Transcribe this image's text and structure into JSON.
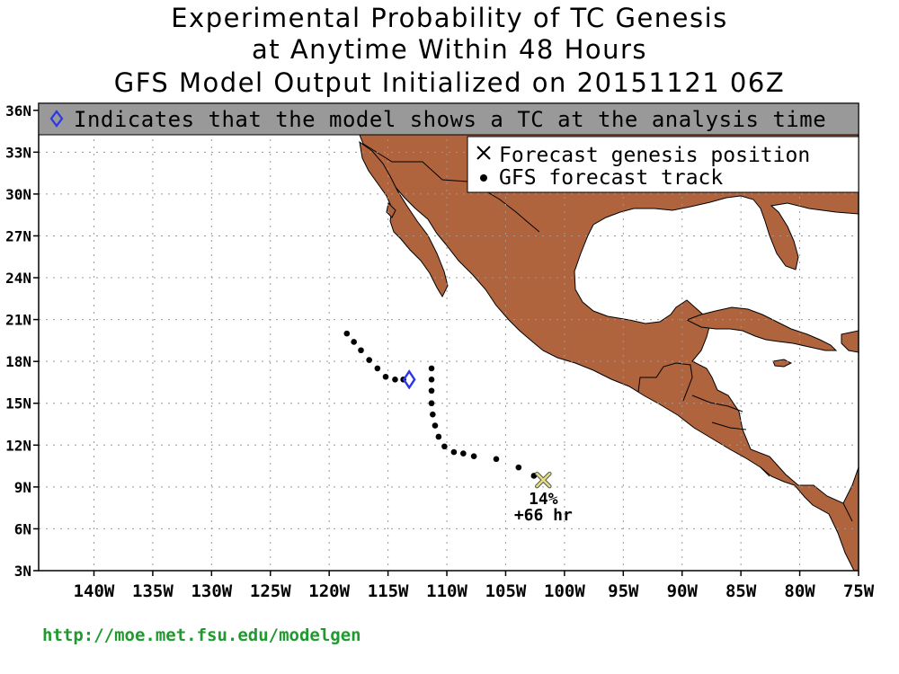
{
  "title": {
    "line1": "Experimental Probability of TC Genesis",
    "line2": "at Anytime Within 48 Hours",
    "line3": "GFS Model Output Initialized on 20151121 06Z"
  },
  "banner": {
    "text": "Indicates that the model shows a TC at the analysis time",
    "icon": "diamond-icon"
  },
  "legend": {
    "genesis_label": "Forecast genesis position",
    "track_label": "GFS forecast track"
  },
  "axes": {
    "lon_labels": [
      "140W",
      "135W",
      "130W",
      "125W",
      "120W",
      "115W",
      "110W",
      "105W",
      "100W",
      "95W",
      "90W",
      "85W",
      "80W",
      "75W"
    ],
    "lon_values": [
      -140,
      -135,
      -130,
      -125,
      -120,
      -115,
      -110,
      -105,
      -100,
      -95,
      -90,
      -85,
      -80,
      -75
    ],
    "lat_labels": [
      "3N",
      "6N",
      "9N",
      "12N",
      "15N",
      "18N",
      "21N",
      "24N",
      "27N",
      "30N",
      "33N",
      "36N"
    ],
    "lat_values": [
      3,
      6,
      9,
      12,
      15,
      18,
      21,
      24,
      27,
      30,
      33,
      36
    ],
    "lon_range": [
      -144.7,
      -75
    ],
    "lat_range": [
      3,
      36.5
    ]
  },
  "analysis_position": {
    "lon": -113.2,
    "lat": 16.7
  },
  "track": [
    [
      -118.5,
      20.0
    ],
    [
      -117.9,
      19.4
    ],
    [
      -117.3,
      18.8
    ],
    [
      -116.6,
      18.1
    ],
    [
      -115.9,
      17.5
    ],
    [
      -115.2,
      16.9
    ],
    [
      -114.4,
      16.7
    ],
    [
      -113.7,
      16.7
    ],
    [
      -111.3,
      17.5
    ],
    [
      -111.3,
      16.7
    ],
    [
      -111.3,
      15.9
    ],
    [
      -111.3,
      15.0
    ],
    [
      -111.2,
      14.2
    ],
    [
      -111.0,
      13.4
    ],
    [
      -110.7,
      12.6
    ],
    [
      -110.2,
      11.9
    ],
    [
      -109.4,
      11.5
    ],
    [
      -108.6,
      11.4
    ],
    [
      -107.7,
      11.2
    ],
    [
      -105.8,
      11.0
    ],
    [
      -103.9,
      10.4
    ],
    [
      -102.6,
      9.8
    ]
  ],
  "genesis": {
    "lon": -101.8,
    "lat": 9.5,
    "probability": "14%",
    "lead_time": "+66 hr"
  },
  "colors": {
    "land": "#b0643d",
    "banner": "#999999",
    "genesis_marker": "#e6e07a",
    "diamond": "#2a37e8",
    "url": "#1f9a2e"
  },
  "footer": {
    "url": "http://moe.met.fsu.edu/modelgen"
  }
}
